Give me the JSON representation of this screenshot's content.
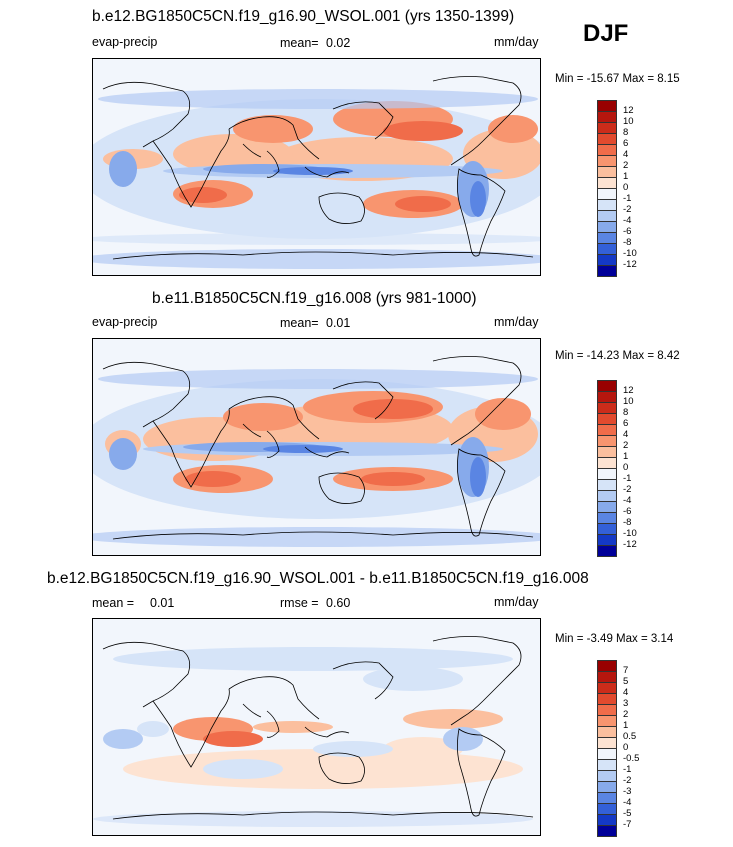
{
  "season": "DJF",
  "units": "mm/day",
  "variable": "evap-precip",
  "chart_data": [
    {
      "type": "heatmap",
      "title": "b.e12.BG1850C5CN.f19_g16.90_WSOL.001 (yrs 1350-1399)",
      "left_label": "evap-precip",
      "mean_label": "mean=",
      "mean_value": "0.02",
      "units": "mm/day",
      "stats_text": "Min = -15.67 Max =   8.15",
      "min": -15.67,
      "max": 8.15,
      "colorbar_levels": [
        "12",
        "10",
        "8",
        "6",
        "4",
        "2",
        "1",
        "0",
        "-1",
        "-2",
        "-4",
        "-6",
        "-8",
        "-10",
        "-12"
      ],
      "colorbar_colors": [
        "#990000",
        "#b5160e",
        "#cc2c1a",
        "#e24a2e",
        "#f06c4a",
        "#f8956f",
        "#fbbf9e",
        "#fde3d2",
        "#f2f6fc",
        "#d6e4f8",
        "#b3cbf3",
        "#87aaeb",
        "#5a85e3",
        "#3360d8",
        "#1439c6",
        "#000099"
      ]
    },
    {
      "type": "heatmap",
      "title": "b.e11.B1850C5CN.f19_g16.008 (yrs 981-1000)",
      "left_label": "evap-precip",
      "mean_label": "mean=",
      "mean_value": "0.01",
      "units": "mm/day",
      "stats_text": "Min = -14.23 Max =   8.42",
      "min": -14.23,
      "max": 8.42,
      "colorbar_levels": [
        "12",
        "10",
        "8",
        "6",
        "4",
        "2",
        "1",
        "0",
        "-1",
        "-2",
        "-4",
        "-6",
        "-8",
        "-10",
        "-12"
      ],
      "colorbar_colors": [
        "#990000",
        "#b5160e",
        "#cc2c1a",
        "#e24a2e",
        "#f06c4a",
        "#f8956f",
        "#fbbf9e",
        "#fde3d2",
        "#f2f6fc",
        "#d6e4f8",
        "#b3cbf3",
        "#87aaeb",
        "#5a85e3",
        "#3360d8",
        "#1439c6",
        "#000099"
      ]
    },
    {
      "type": "heatmap",
      "title": "b.e12.BG1850C5CN.f19_g16.90_WSOL.001 - b.e11.B1850C5CN.f19_g16.008",
      "left_label": "mean =",
      "mean_value": "0.01",
      "center_label": "rmse =",
      "rmse_value": "0.60",
      "units": "mm/day",
      "stats_text": "Min =  -3.49 Max =   3.14",
      "min": -3.49,
      "max": 3.14,
      "colorbar_levels": [
        "7",
        "5",
        "4",
        "3",
        "2",
        "1",
        "0.5",
        "0",
        "-0.5",
        "-1",
        "-2",
        "-3",
        "-4",
        "-5",
        "-7"
      ],
      "colorbar_colors": [
        "#990000",
        "#b5160e",
        "#cc2c1a",
        "#e24a2e",
        "#f06c4a",
        "#f8956f",
        "#fbbf9e",
        "#fde3d2",
        "#f2f6fc",
        "#d6e4f8",
        "#b3cbf3",
        "#87aaeb",
        "#5a85e3",
        "#3360d8",
        "#1439c6",
        "#000099"
      ]
    }
  ]
}
